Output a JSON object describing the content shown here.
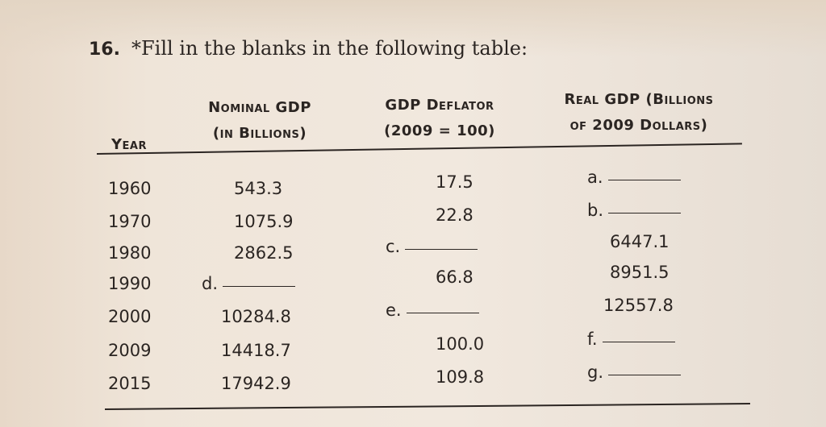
{
  "question": {
    "number": "16.",
    "text": "*Fill in the blanks in the following table:"
  },
  "table": {
    "headers": {
      "year": "Year",
      "nominal": [
        "Nominal GDP",
        "(in Billions)"
      ],
      "deflator": [
        "GDP Deflator",
        "(2009 = 100)"
      ],
      "real": [
        "Real GDP (Billions",
        "of 2009 Dollars)"
      ]
    },
    "rows": [
      {
        "year": "1960",
        "nominal": "543.3",
        "deflator": "17.5",
        "real": "a."
      },
      {
        "year": "1970",
        "nominal": "1075.9",
        "deflator": "22.8",
        "real": "b."
      },
      {
        "year": "1980",
        "nominal": "2862.5",
        "deflator": "c.",
        "real": "6447.1"
      },
      {
        "year": "1990",
        "nominal": "d.",
        "deflator": "66.8",
        "real": "8951.5"
      },
      {
        "year": "2000",
        "nominal": "10284.8",
        "deflator": "e.",
        "real": "12557.8"
      },
      {
        "year": "2009",
        "nominal": "14418.7",
        "deflator": "100.0",
        "real": "f."
      },
      {
        "year": "2015",
        "nominal": "17942.9",
        "deflator": "109.8",
        "real": "g."
      }
    ]
  }
}
